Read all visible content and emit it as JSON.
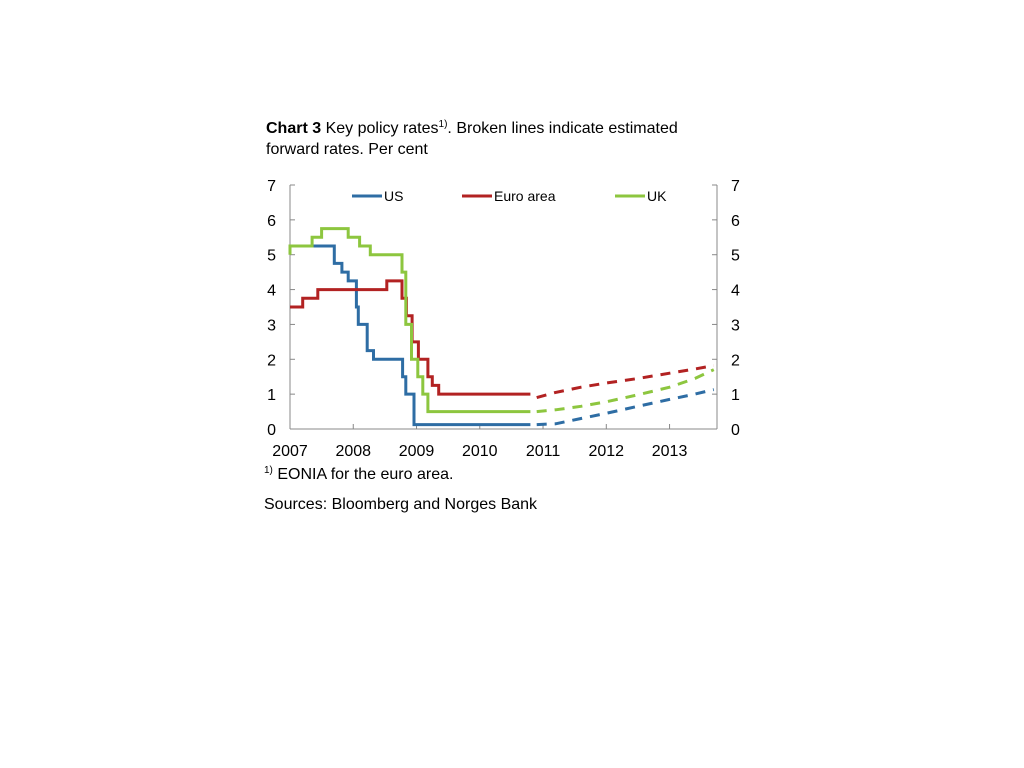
{
  "title": {
    "bold": "Chart 3",
    "text": " Key policy rates",
    "sup": "1)",
    "rest": ". Broken lines indicate estimated forward rates. Per cent"
  },
  "footnote": {
    "sup": "1)",
    "text": " EONIA for the euro area."
  },
  "sources": "Sources: Bloomberg and Norges Bank",
  "chart_data": {
    "type": "line",
    "xlim": [
      2007,
      2013.75
    ],
    "ylim": [
      0,
      7
    ],
    "x_ticks": [
      2007,
      2008,
      2009,
      2010,
      2011,
      2012,
      2013
    ],
    "x_tick_labels": [
      "2007",
      "2008",
      "2009",
      "2010",
      "2011",
      "2012",
      "2013"
    ],
    "y_ticks": [
      0,
      1,
      2,
      3,
      4,
      5,
      6,
      7
    ],
    "y_tick_labels": [
      "0",
      "1",
      "2",
      "3",
      "4",
      "5",
      "6",
      "7"
    ],
    "legend_position": "top",
    "series": [
      {
        "name": "US",
        "color": "#2E6DA4",
        "actual": [
          [
            2007.0,
            5.25
          ],
          [
            2007.7,
            5.25
          ],
          [
            2007.7,
            4.75
          ],
          [
            2007.82,
            4.75
          ],
          [
            2007.82,
            4.5
          ],
          [
            2007.92,
            4.5
          ],
          [
            2007.92,
            4.25
          ],
          [
            2008.05,
            4.25
          ],
          [
            2008.05,
            3.5
          ],
          [
            2008.08,
            3.5
          ],
          [
            2008.08,
            3.0
          ],
          [
            2008.22,
            3.0
          ],
          [
            2008.22,
            2.25
          ],
          [
            2008.32,
            2.25
          ],
          [
            2008.32,
            2.0
          ],
          [
            2008.78,
            2.0
          ],
          [
            2008.78,
            1.5
          ],
          [
            2008.83,
            1.5
          ],
          [
            2008.83,
            1.0
          ],
          [
            2008.96,
            1.0
          ],
          [
            2008.96,
            0.125
          ],
          [
            2010.8,
            0.125
          ]
        ],
        "forward": [
          [
            2010.9,
            0.125
          ],
          [
            2011.2,
            0.15
          ],
          [
            2011.6,
            0.3
          ],
          [
            2012.0,
            0.45
          ],
          [
            2012.5,
            0.65
          ],
          [
            2013.0,
            0.85
          ],
          [
            2013.4,
            1.0
          ],
          [
            2013.7,
            1.13
          ]
        ]
      },
      {
        "name": "Euro area",
        "color": "#B22222",
        "actual": [
          [
            2007.0,
            3.5
          ],
          [
            2007.2,
            3.5
          ],
          [
            2007.2,
            3.75
          ],
          [
            2007.44,
            3.75
          ],
          [
            2007.44,
            4.0
          ],
          [
            2008.53,
            4.0
          ],
          [
            2008.53,
            4.25
          ],
          [
            2008.77,
            4.25
          ],
          [
            2008.77,
            3.75
          ],
          [
            2008.84,
            3.75
          ],
          [
            2008.84,
            3.25
          ],
          [
            2008.93,
            3.25
          ],
          [
            2008.93,
            2.5
          ],
          [
            2009.03,
            2.5
          ],
          [
            2009.03,
            2.0
          ],
          [
            2009.18,
            2.0
          ],
          [
            2009.18,
            1.5
          ],
          [
            2009.25,
            1.5
          ],
          [
            2009.25,
            1.25
          ],
          [
            2009.35,
            1.25
          ],
          [
            2009.35,
            1.0
          ],
          [
            2010.8,
            1.0
          ]
        ],
        "forward": [
          [
            2010.9,
            0.9
          ],
          [
            2011.2,
            1.05
          ],
          [
            2011.6,
            1.2
          ],
          [
            2012.0,
            1.32
          ],
          [
            2012.5,
            1.45
          ],
          [
            2013.0,
            1.6
          ],
          [
            2013.4,
            1.72
          ],
          [
            2013.7,
            1.82
          ]
        ]
      },
      {
        "name": "UK",
        "color": "#8DC63F",
        "actual": [
          [
            2007.0,
            5.0
          ],
          [
            2007.0,
            5.25
          ],
          [
            2007.35,
            5.25
          ],
          [
            2007.35,
            5.5
          ],
          [
            2007.5,
            5.5
          ],
          [
            2007.5,
            5.75
          ],
          [
            2007.92,
            5.75
          ],
          [
            2007.92,
            5.5
          ],
          [
            2008.1,
            5.5
          ],
          [
            2008.1,
            5.25
          ],
          [
            2008.27,
            5.25
          ],
          [
            2008.27,
            5.0
          ],
          [
            2008.77,
            5.0
          ],
          [
            2008.77,
            4.5
          ],
          [
            2008.83,
            4.5
          ],
          [
            2008.83,
            3.0
          ],
          [
            2008.92,
            3.0
          ],
          [
            2008.92,
            2.0
          ],
          [
            2009.02,
            2.0
          ],
          [
            2009.02,
            1.5
          ],
          [
            2009.1,
            1.5
          ],
          [
            2009.1,
            1.0
          ],
          [
            2009.18,
            1.0
          ],
          [
            2009.18,
            0.5
          ],
          [
            2010.8,
            0.5
          ]
        ],
        "forward": [
          [
            2010.9,
            0.5
          ],
          [
            2011.2,
            0.55
          ],
          [
            2011.6,
            0.65
          ],
          [
            2012.0,
            0.78
          ],
          [
            2012.5,
            0.98
          ],
          [
            2013.0,
            1.2
          ],
          [
            2013.4,
            1.45
          ],
          [
            2013.7,
            1.7
          ]
        ]
      }
    ]
  }
}
